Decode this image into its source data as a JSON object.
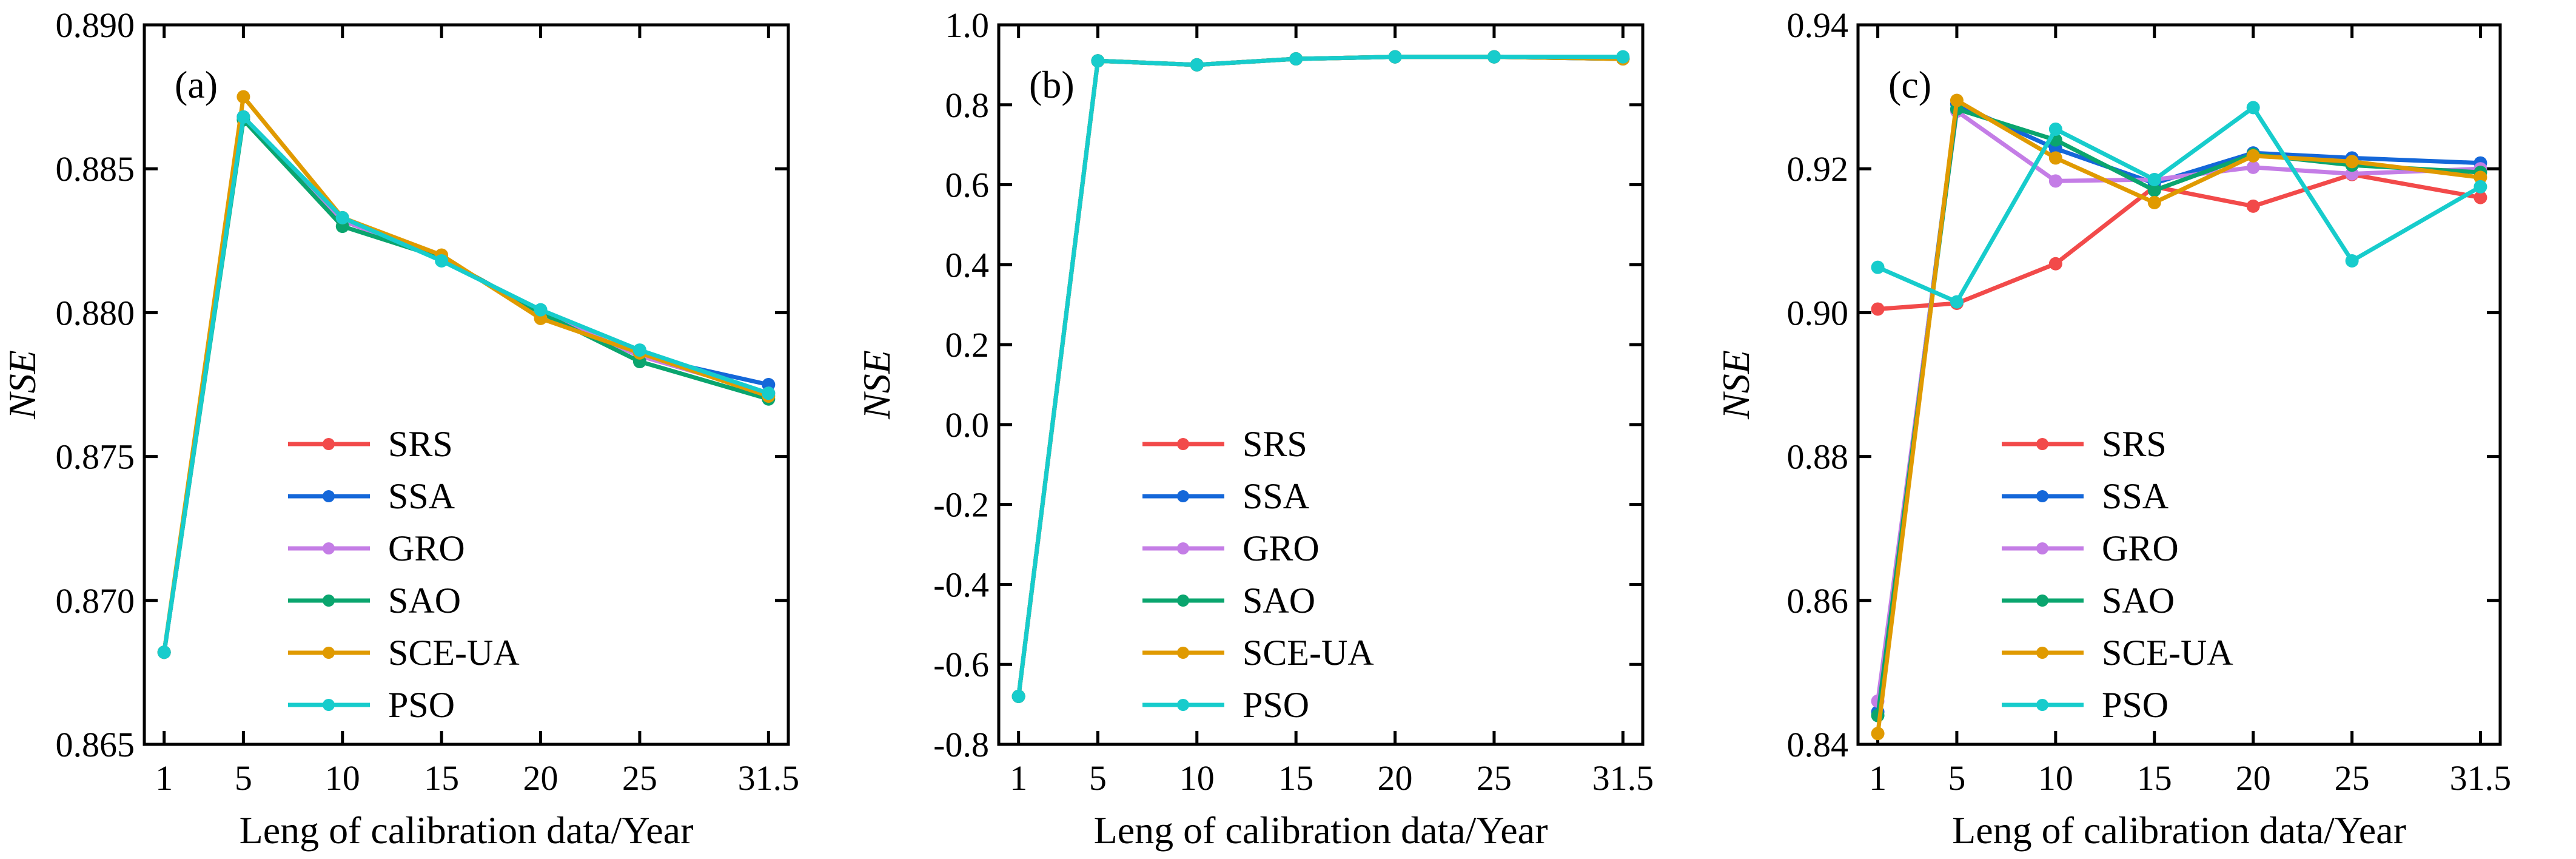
{
  "series_colors": {
    "SRS": "#f24a4a",
    "SSA": "#1467d9",
    "GRO": "#c47de6",
    "SAO": "#0aa56e",
    "SCE-UA": "#e09a00",
    "PSO": "#17cccc"
  },
  "chart_data": [
    {
      "type": "line",
      "panel_label": "(a)",
      "xlabel": "Leng of calibration data/Year",
      "ylabel": "NSE",
      "x": [
        1,
        5,
        10,
        15,
        20,
        25,
        31.5
      ],
      "x_ticks": [
        "1",
        "5",
        "10",
        "15",
        "20",
        "25",
        "31.5"
      ],
      "xlim": [
        0,
        32.5
      ],
      "ylim": [
        0.865,
        0.89
      ],
      "y_ticks": [
        "0.865",
        "0.870",
        "0.875",
        "0.880",
        "0.885",
        "0.890"
      ],
      "legend": "bottom-right",
      "series": [
        {
          "name": "SRS",
          "values": [
            0.8682,
            0.8868,
            0.8832,
            0.8819,
            0.88,
            0.8785,
            0.8772
          ]
        },
        {
          "name": "SSA",
          "values": [
            0.8682,
            0.8868,
            0.8832,
            0.8819,
            0.88,
            0.8785,
            0.8775
          ]
        },
        {
          "name": "GRO",
          "values": [
            0.8682,
            0.8868,
            0.8832,
            0.8819,
            0.88,
            0.8785,
            0.8772
          ]
        },
        {
          "name": "SAO",
          "values": [
            0.8682,
            0.8867,
            0.883,
            0.8819,
            0.88,
            0.8783,
            0.877
          ]
        },
        {
          "name": "SCE-UA",
          "values": [
            0.8682,
            0.8875,
            0.8833,
            0.882,
            0.8798,
            0.8786,
            0.8771
          ]
        },
        {
          "name": "PSO",
          "values": [
            0.8682,
            0.8868,
            0.8833,
            0.8818,
            0.8801,
            0.8787,
            0.8772
          ]
        }
      ]
    },
    {
      "type": "line",
      "panel_label": "(b)",
      "xlabel": "Leng of calibration data/Year",
      "ylabel": "NSE",
      "x": [
        1,
        5,
        10,
        15,
        20,
        25,
        31.5
      ],
      "x_ticks": [
        "1",
        "5",
        "10",
        "15",
        "20",
        "25",
        "31.5"
      ],
      "xlim": [
        0,
        32.5
      ],
      "ylim": [
        -0.8,
        1.0
      ],
      "y_ticks": [
        "-0.8",
        "-0.6",
        "-0.4",
        "-0.2",
        "0.0",
        "0.2",
        "0.4",
        "0.6",
        "0.8",
        "1.0"
      ],
      "legend": "bottom-right",
      "series": [
        {
          "name": "SRS",
          "values": [
            -0.68,
            0.91,
            0.9,
            0.915,
            0.92,
            0.92,
            0.915
          ]
        },
        {
          "name": "SSA",
          "values": [
            -0.68,
            0.91,
            0.9,
            0.915,
            0.92,
            0.92,
            0.915
          ]
        },
        {
          "name": "GRO",
          "values": [
            -0.68,
            0.91,
            0.9,
            0.915,
            0.92,
            0.92,
            0.915
          ]
        },
        {
          "name": "SAO",
          "values": [
            -0.68,
            0.91,
            0.9,
            0.915,
            0.92,
            0.92,
            0.915
          ]
        },
        {
          "name": "SCE-UA",
          "values": [
            -0.68,
            0.91,
            0.9,
            0.915,
            0.92,
            0.92,
            0.915
          ]
        },
        {
          "name": "PSO",
          "values": [
            -0.68,
            0.91,
            0.9,
            0.915,
            0.92,
            0.92,
            0.92
          ]
        }
      ]
    },
    {
      "type": "line",
      "panel_label": "(c)",
      "xlabel": "Leng of calibration data/Year",
      "ylabel": "NSE",
      "x": [
        1,
        5,
        10,
        15,
        20,
        25,
        31.5
      ],
      "x_ticks": [
        "1",
        "5",
        "10",
        "15",
        "20",
        "25",
        "31.5"
      ],
      "xlim": [
        0,
        32.5
      ],
      "ylim": [
        0.84,
        0.94
      ],
      "y_ticks": [
        "0.84",
        "0.86",
        "0.88",
        "0.90",
        "0.92",
        "0.94"
      ],
      "legend": "bottom-right",
      "series": [
        {
          "name": "SRS",
          "values": [
            0.9005,
            0.9013,
            0.9068,
            0.9175,
            0.9148,
            0.9192,
            0.916
          ]
        },
        {
          "name": "SSA",
          "values": [
            0.8445,
            0.929,
            0.9228,
            0.918,
            0.9222,
            0.9215,
            0.9208
          ]
        },
        {
          "name": "GRO",
          "values": [
            0.846,
            0.928,
            0.9183,
            0.9185,
            0.9202,
            0.9193,
            0.92
          ]
        },
        {
          "name": "SAO",
          "values": [
            0.844,
            0.9283,
            0.924,
            0.917,
            0.922,
            0.9205,
            0.9195
          ]
        },
        {
          "name": "SCE-UA",
          "values": [
            0.8415,
            0.9295,
            0.9215,
            0.9153,
            0.9218,
            0.921,
            0.9188
          ]
        },
        {
          "name": "PSO",
          "values": [
            0.9063,
            0.9015,
            0.9255,
            0.9185,
            0.9285,
            0.9072,
            0.9175
          ]
        }
      ]
    }
  ]
}
